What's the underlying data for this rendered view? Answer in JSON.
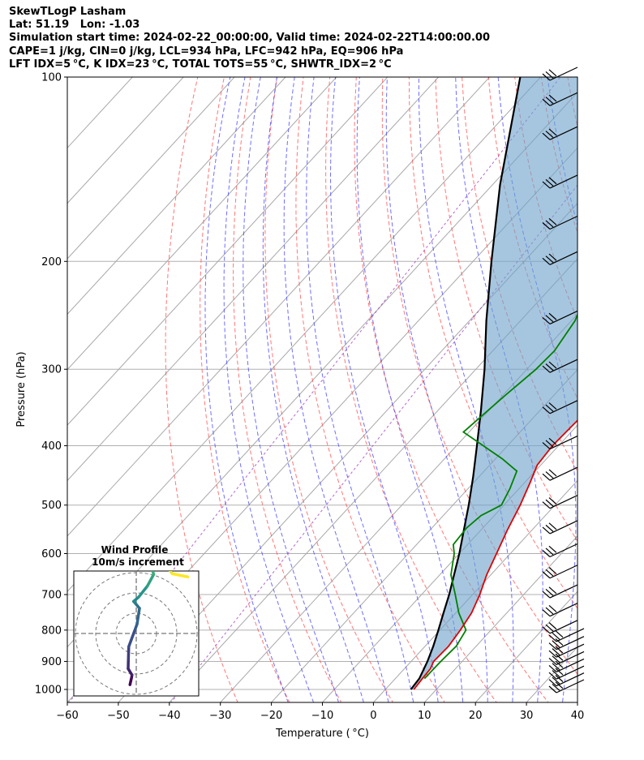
{
  "header": {
    "line1": "SkewTLogP Lasham",
    "line2": "Lat: 51.19   Lon: -1.03",
    "line3": "Simulation start time: 2024-02-22_00:00:00, Valid time: 2024-02-22T14:00:00.00",
    "line4": "CAPE=1 j/kg, CIN=0 j/kg, LCL=934 hPa, LFC=942 hPa, EQ=906 hPa",
    "line5": "LFT IDX=5 °C, K IDX=23 °C, TOTAL TOTS=55 °C, SHWTR_IDX=2 °C"
  },
  "chart_data": {
    "type": "line",
    "subtype": "skew-T log-P",
    "xlabel": "Temperature ( °C)",
    "ylabel": "Pressure (hPa)",
    "xlim": [
      -60,
      40
    ],
    "ylim_hpa": [
      1050,
      100
    ],
    "y_scale": "log",
    "x_ticks": [
      "−60",
      "−50",
      "−40",
      "−30",
      "−20",
      "−10",
      "0",
      "10",
      "20",
      "30",
      "40"
    ],
    "x_tick_values": [
      -60,
      -50,
      -40,
      -30,
      -20,
      -10,
      0,
      10,
      20,
      30,
      40
    ],
    "y_ticks": [
      "100",
      "200",
      "300",
      "400",
      "500",
      "600",
      "700",
      "800",
      "900",
      "1000"
    ],
    "y_tick_values": [
      100,
      200,
      300,
      400,
      500,
      600,
      700,
      800,
      900,
      1000
    ],
    "grid": true,
    "series": [
      {
        "key": "temperature",
        "color": "#e00000",
        "points": [
          [
            1000,
            5.6
          ],
          [
            960,
            5.3
          ],
          [
            925,
            5.1
          ],
          [
            900,
            4.4
          ],
          [
            850,
            4.6
          ],
          [
            800,
            4.0
          ],
          [
            750,
            3.1
          ],
          [
            700,
            1.4
          ],
          [
            650,
            -0.8
          ],
          [
            600,
            -2.7
          ],
          [
            550,
            -4.8
          ],
          [
            500,
            -6.8
          ],
          [
            460,
            -8.9
          ],
          [
            430,
            -10.7
          ],
          [
            400,
            -11.2
          ],
          [
            380,
            -11.0
          ],
          [
            350,
            -10.7
          ],
          [
            300,
            -9.3
          ],
          [
            270,
            -7.5
          ],
          [
            250,
            -5.5
          ],
          [
            230,
            -3.5
          ],
          [
            200,
            -0.2
          ],
          [
            180,
            1.7
          ],
          [
            165,
            3.2
          ],
          [
            150,
            5.4
          ],
          [
            130,
            9.8
          ],
          [
            110,
            14.8
          ],
          [
            100,
            17.3
          ]
        ]
      },
      {
        "key": "dewpoint",
        "color": "#008000",
        "points": [
          [
            960,
            5.7
          ],
          [
            900,
            5.8
          ],
          [
            850,
            6.1
          ],
          [
            800,
            5.1
          ],
          [
            750,
            0.6
          ],
          [
            700,
            -3.4
          ],
          [
            650,
            -7.8
          ],
          [
            600,
            -11.0
          ],
          [
            580,
            -12.8
          ],
          [
            545,
            -13.2
          ],
          [
            520,
            -12.6
          ],
          [
            500,
            -10.5
          ],
          [
            470,
            -11.8
          ],
          [
            440,
            -13.6
          ],
          [
            420,
            -18.7
          ],
          [
            380,
            -31.1
          ],
          [
            350,
            -30.2
          ],
          [
            330,
            -29.5
          ],
          [
            300,
            -28.2
          ],
          [
            280,
            -27.9
          ],
          [
            250,
            -29.3
          ],
          [
            230,
            -31.5
          ],
          [
            210,
            -31.0
          ],
          [
            190,
            -29.2
          ],
          [
            170,
            -26.9
          ],
          [
            150,
            -23.2
          ],
          [
            130,
            -18.4
          ],
          [
            100,
            -9.5
          ]
        ]
      },
      {
        "key": "parcel",
        "color": "#000000",
        "points": [
          [
            1000,
            5.0
          ],
          [
            960,
            4.7
          ],
          [
            900,
            3.2
          ],
          [
            850,
            1.6
          ],
          [
            800,
            -0.3
          ],
          [
            750,
            -2.4
          ],
          [
            700,
            -4.6
          ],
          [
            650,
            -7.2
          ],
          [
            600,
            -10.0
          ],
          [
            550,
            -13.3
          ],
          [
            500,
            -16.9
          ],
          [
            450,
            -21.1
          ],
          [
            400,
            -26.0
          ],
          [
            350,
            -31.6
          ],
          [
            300,
            -38.3
          ],
          [
            250,
            -46.7
          ],
          [
            200,
            -56.4
          ],
          [
            150,
            -68.5
          ],
          [
            100,
            -84.0
          ]
        ]
      }
    ],
    "wind_barbs_hpa": [
      1000,
      975,
      950,
      925,
      900,
      875,
      850,
      825,
      800,
      750,
      700,
      650,
      600,
      550,
      500,
      450,
      400,
      350,
      300,
      250,
      200,
      175,
      150,
      125,
      110,
      100
    ],
    "hodograph": {
      "title": "Wind Profile",
      "subtitle": "10m/s increment",
      "points": [
        [
          -3.1,
          -16.3
        ],
        [
          -2.3,
          -14.0
        ],
        [
          -2.1,
          -13.2
        ],
        [
          -4.0,
          -11.2
        ],
        [
          -3.9,
          -8.3
        ],
        [
          -3.7,
          -4.2
        ],
        [
          -0.5,
          1.4
        ],
        [
          0.4,
          3.0
        ],
        [
          1.6,
          8.0
        ],
        [
          -0.2,
          9.4
        ],
        [
          -1.3,
          10.2
        ],
        [
          1.2,
          11.6
        ],
        [
          5.5,
          15.1
        ],
        [
          8.6,
          18.8
        ],
        [
          6.1,
          24.1
        ],
        [
          -0.9,
          23.0
        ],
        [
          2.8,
          24.2
        ],
        [
          7.1,
          24.4
        ],
        [
          10.5,
          24.8
        ],
        [
          14.0,
          23.4
        ],
        [
          15.3,
          21.2
        ],
        [
          17.8,
          19.0
        ],
        [
          25.4,
          18.0
        ]
      ],
      "ring_values": [
        10,
        20,
        30
      ]
    }
  }
}
